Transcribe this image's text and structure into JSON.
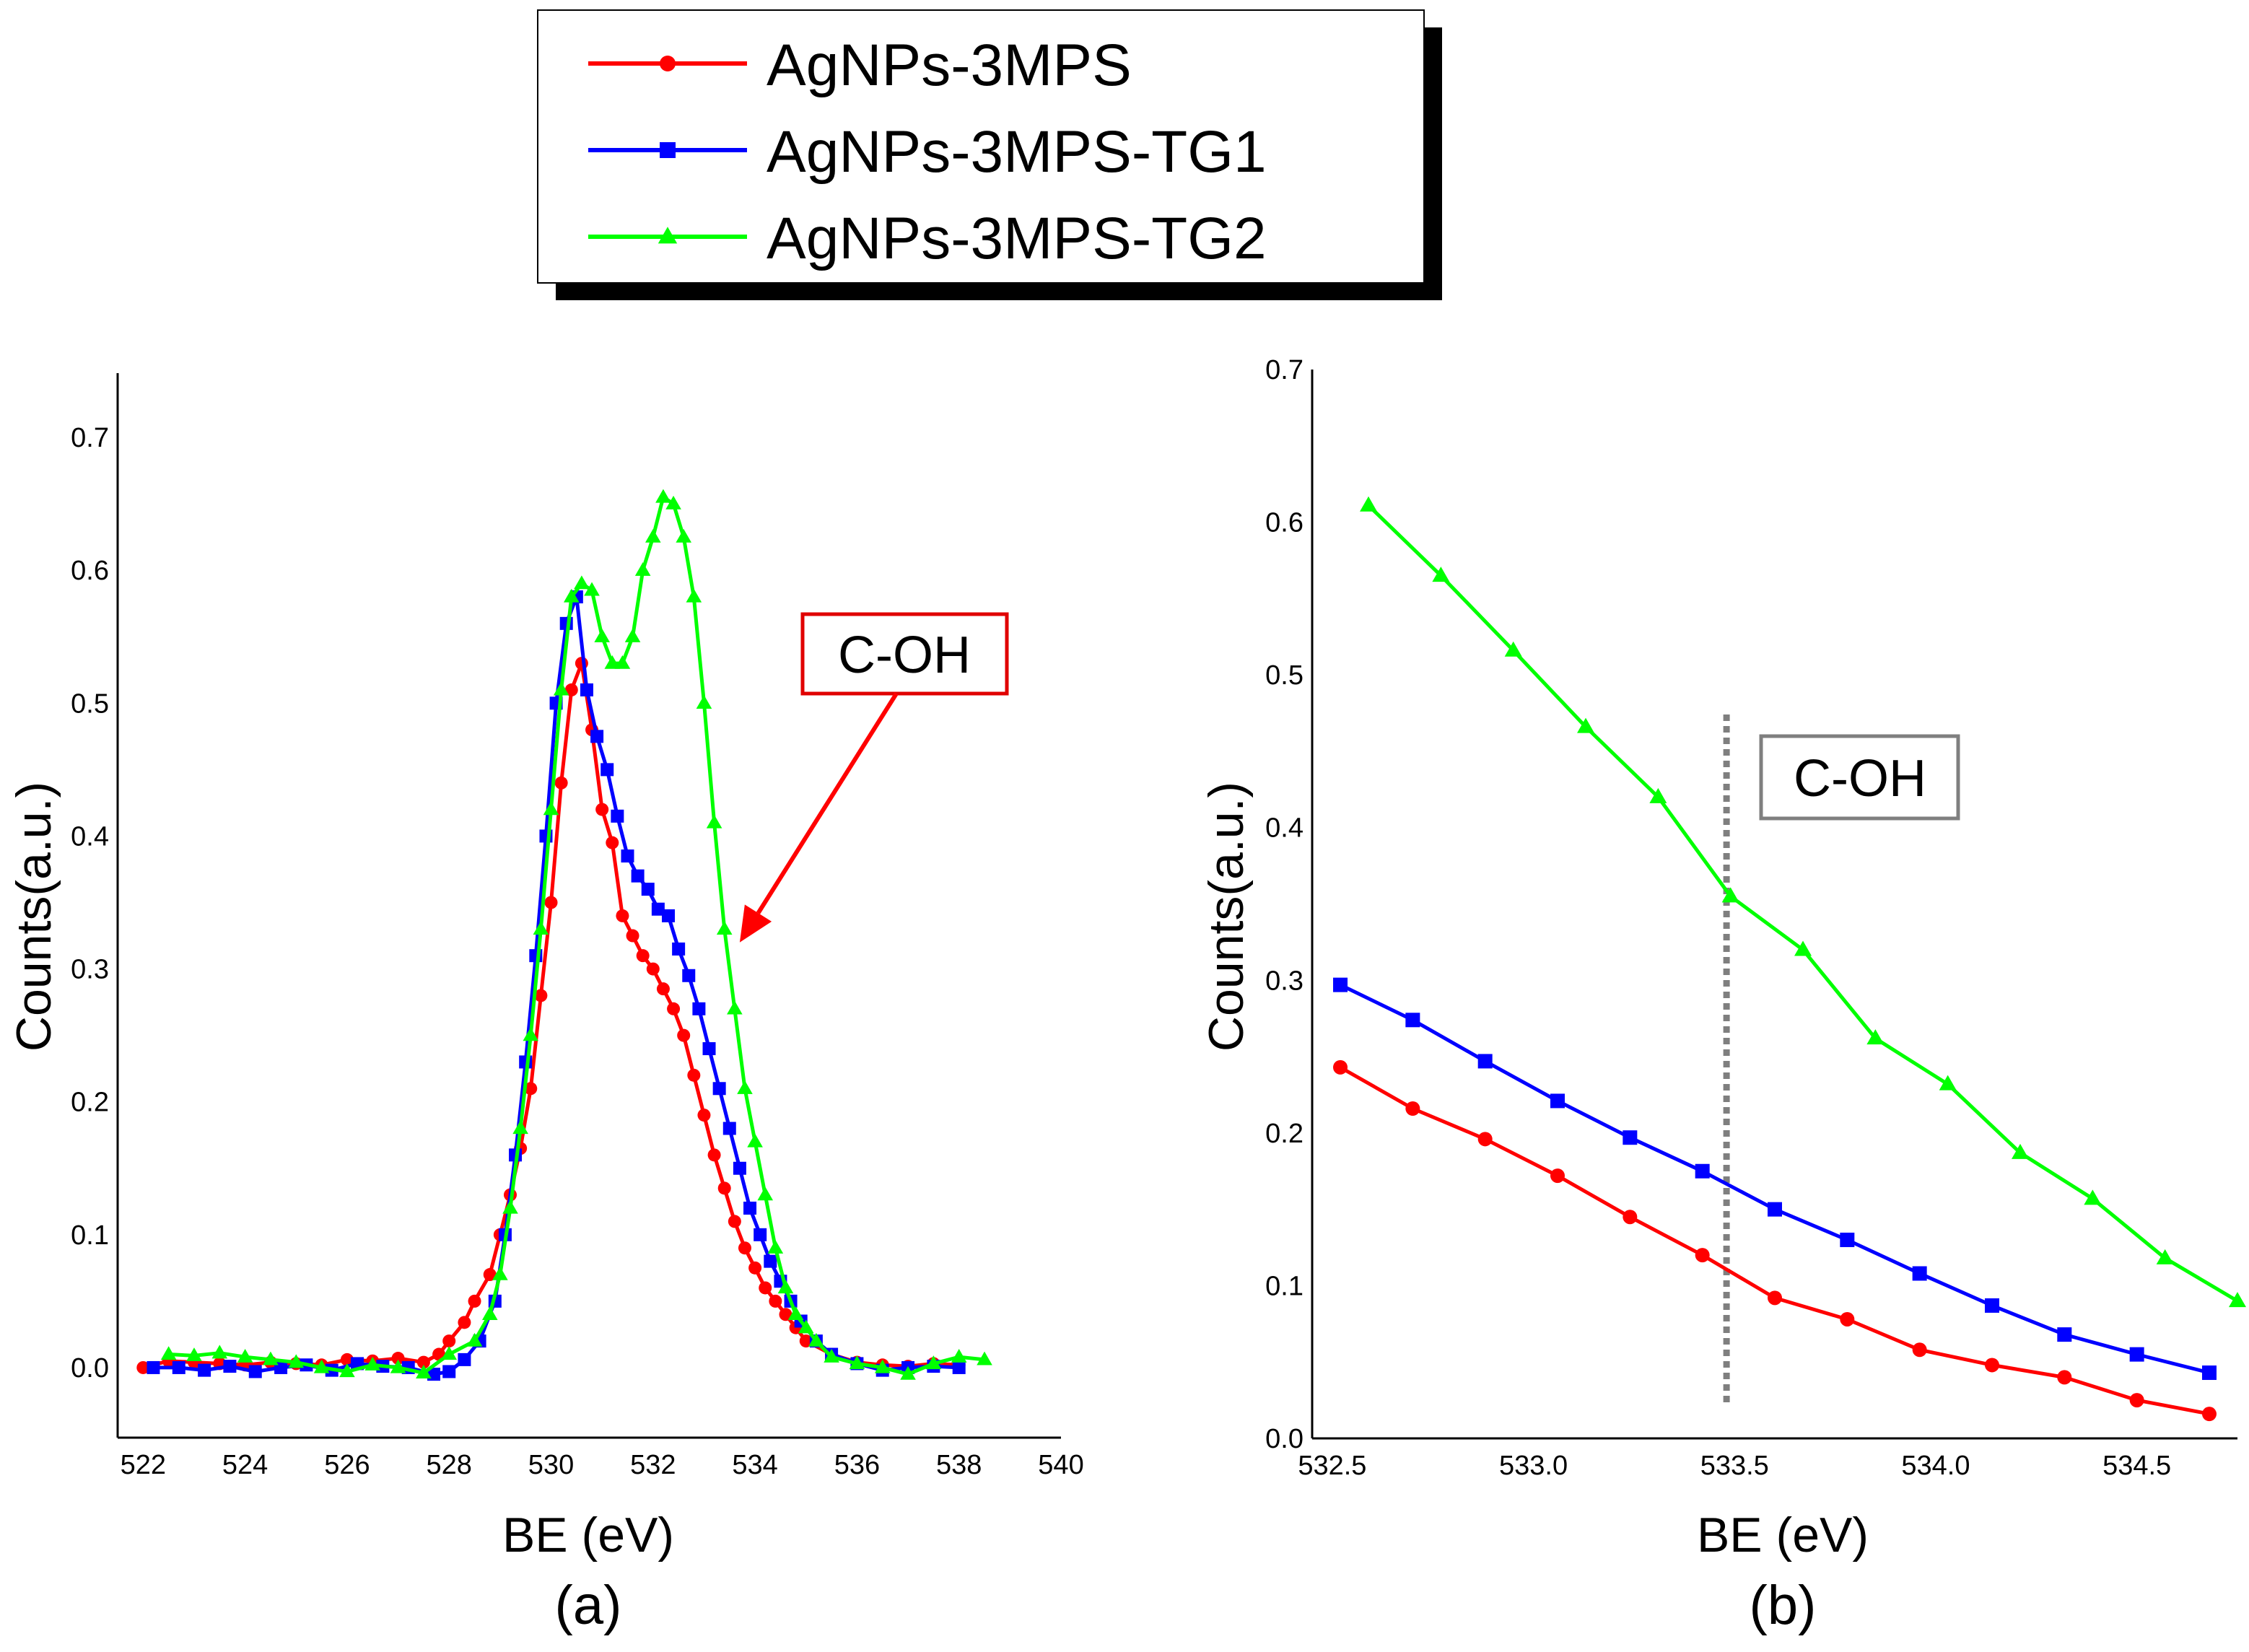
{
  "legend": [
    {
      "label": "AgNPs-3MPS",
      "color": "#ff0000",
      "marker": "circle"
    },
    {
      "label": "AgNPs-3MPS-TG1",
      "color": "#0000ff",
      "marker": "square"
    },
    {
      "label": "AgNPs-3MPS-TG2",
      "color": "#00ff00",
      "marker": "triangle"
    }
  ],
  "chart_data": [
    {
      "type": "line",
      "panel": "(a)",
      "xlabel": "BE (eV)",
      "ylabel": "Counts(a.u.)",
      "xlim": [
        521.5,
        540
      ],
      "ylim": [
        -0.05,
        0.75
      ],
      "xticks": [
        "522",
        "524",
        "526",
        "528",
        "530",
        "532",
        "534",
        "536",
        "538",
        "540"
      ],
      "yticks": [
        "0.0",
        "0.1",
        "0.2",
        "0.3",
        "0.4",
        "0.5",
        "0.6",
        "0.7"
      ],
      "annotation": {
        "text": "C-OH",
        "arrow_to": [
          533.7,
          0.32
        ]
      },
      "series": [
        {
          "name": "AgNPs-3MPS",
          "x": [
            522.0,
            522.5,
            523.0,
            523.5,
            524.0,
            524.5,
            525.0,
            525.5,
            526.0,
            526.5,
            527.0,
            527.5,
            527.8,
            528.0,
            528.3,
            528.5,
            528.8,
            529.0,
            529.2,
            529.4,
            529.6,
            529.8,
            530.0,
            530.2,
            530.4,
            530.6,
            530.8,
            531.0,
            531.2,
            531.4,
            531.6,
            531.8,
            532.0,
            532.2,
            532.4,
            532.6,
            532.8,
            533.0,
            533.2,
            533.4,
            533.6,
            533.8,
            534.0,
            534.2,
            534.4,
            534.6,
            534.8,
            535.0,
            535.5,
            536.0,
            536.5,
            537.0,
            537.5,
            538.0
          ],
          "y": [
            0.0,
            0.005,
            0.004,
            0.003,
            0.002,
            0.004,
            0.003,
            0.002,
            0.006,
            0.005,
            0.007,
            0.004,
            0.01,
            0.02,
            0.034,
            0.05,
            0.07,
            0.1,
            0.13,
            0.165,
            0.21,
            0.28,
            0.35,
            0.44,
            0.51,
            0.53,
            0.48,
            0.42,
            0.395,
            0.34,
            0.325,
            0.31,
            0.3,
            0.285,
            0.27,
            0.25,
            0.22,
            0.19,
            0.16,
            0.135,
            0.11,
            0.09,
            0.075,
            0.06,
            0.05,
            0.04,
            0.03,
            0.02,
            0.01,
            0.004,
            0.002,
            0.001,
            0.003,
            0.002
          ]
        },
        {
          "name": "AgNPs-3MPS-TG1",
          "x": [
            522.2,
            522.7,
            523.2,
            523.7,
            524.2,
            524.7,
            525.2,
            525.7,
            526.2,
            526.7,
            527.2,
            527.7,
            528.0,
            528.3,
            528.6,
            528.9,
            529.1,
            529.3,
            529.5,
            529.7,
            529.9,
            530.1,
            530.3,
            530.5,
            530.7,
            530.9,
            531.1,
            531.3,
            531.5,
            531.7,
            531.9,
            532.1,
            532.3,
            532.5,
            532.7,
            532.9,
            533.1,
            533.3,
            533.5,
            533.7,
            533.9,
            534.1,
            534.3,
            534.5,
            534.7,
            534.9,
            535.2,
            535.5,
            536.0,
            536.5,
            537.0,
            537.5,
            538.0
          ],
          "y": [
            0.0,
            0.0,
            -0.002,
            0.001,
            -0.003,
            0.0,
            0.002,
            -0.002,
            0.003,
            0.001,
            0.0,
            -0.005,
            -0.003,
            0.006,
            0.02,
            0.05,
            0.1,
            0.16,
            0.23,
            0.31,
            0.4,
            0.5,
            0.56,
            0.58,
            0.51,
            0.475,
            0.45,
            0.415,
            0.385,
            0.37,
            0.36,
            0.345,
            0.34,
            0.315,
            0.295,
            0.27,
            0.24,
            0.21,
            0.18,
            0.15,
            0.12,
            0.1,
            0.08,
            0.065,
            0.05,
            0.035,
            0.02,
            0.01,
            0.003,
            -0.002,
            0.0,
            0.001,
            0.0
          ]
        },
        {
          "name": "AgNPs-3MPS-TG2",
          "x": [
            522.5,
            523.0,
            523.5,
            524.0,
            524.5,
            525.0,
            525.5,
            526.0,
            526.5,
            527.0,
            527.5,
            528.0,
            528.5,
            528.8,
            529.0,
            529.2,
            529.4,
            529.6,
            529.8,
            530.0,
            530.2,
            530.4,
            530.6,
            530.8,
            531.0,
            531.2,
            531.4,
            531.6,
            531.8,
            532.0,
            532.2,
            532.4,
            532.6,
            532.8,
            533.0,
            533.2,
            533.4,
            533.6,
            533.8,
            534.0,
            534.2,
            534.4,
            534.6,
            534.8,
            535.0,
            535.2,
            535.5,
            536.0,
            536.5,
            537.0,
            537.5,
            538.0,
            538.5
          ],
          "y": [
            0.01,
            0.009,
            0.011,
            0.008,
            0.006,
            0.004,
            0.0,
            -0.003,
            0.002,
            0.0,
            -0.004,
            0.01,
            0.02,
            0.04,
            0.07,
            0.12,
            0.18,
            0.25,
            0.33,
            0.42,
            0.51,
            0.58,
            0.59,
            0.585,
            0.55,
            0.53,
            0.53,
            0.55,
            0.6,
            0.625,
            0.655,
            0.65,
            0.625,
            0.58,
            0.5,
            0.41,
            0.33,
            0.27,
            0.21,
            0.17,
            0.13,
            0.09,
            0.06,
            0.04,
            0.03,
            0.02,
            0.008,
            0.003,
            0.0,
            -0.005,
            0.003,
            0.008,
            0.006
          ]
        }
      ]
    },
    {
      "type": "line",
      "panel": "(b)",
      "xlabel": "BE (eV)",
      "ylabel": "Counts(a.u.)",
      "xlim": [
        532.45,
        534.75
      ],
      "ylim": [
        0.0,
        0.7
      ],
      "xticks": [
        "532.5",
        "533.0",
        "533.5",
        "534.0",
        "534.5"
      ],
      "yticks": [
        "0.0",
        "0.1",
        "0.2",
        "0.3",
        "0.4",
        "0.5",
        "0.6",
        "0.7"
      ],
      "annotation": {
        "text": "C-OH",
        "x": 533.48
      },
      "series": [
        {
          "name": "AgNPs-3MPS",
          "x": [
            532.52,
            532.7,
            532.88,
            533.06,
            533.24,
            533.42,
            533.6,
            533.78,
            533.96,
            534.14,
            534.32,
            534.5,
            534.68
          ],
          "y": [
            0.243,
            0.216,
            0.196,
            0.172,
            0.145,
            0.12,
            0.092,
            0.078,
            0.058,
            0.048,
            0.04,
            0.025,
            0.016
          ]
        },
        {
          "name": "AgNPs-3MPS-TG1",
          "x": [
            532.52,
            532.7,
            532.88,
            533.06,
            533.24,
            533.42,
            533.6,
            533.78,
            533.96,
            534.14,
            534.32,
            534.5,
            534.68
          ],
          "y": [
            0.297,
            0.274,
            0.247,
            0.221,
            0.197,
            0.175,
            0.15,
            0.13,
            0.108,
            0.087,
            0.068,
            0.055,
            0.043
          ]
        },
        {
          "name": "AgNPs-3MPS-TG2",
          "x": [
            532.59,
            532.77,
            532.95,
            533.13,
            533.31,
            533.49,
            533.67,
            533.85,
            534.03,
            534.21,
            534.39,
            534.57,
            534.75
          ],
          "y": [
            0.611,
            0.565,
            0.516,
            0.466,
            0.42,
            0.355,
            0.32,
            0.262,
            0.232,
            0.187,
            0.157,
            0.118,
            0.09
          ]
        }
      ]
    }
  ]
}
